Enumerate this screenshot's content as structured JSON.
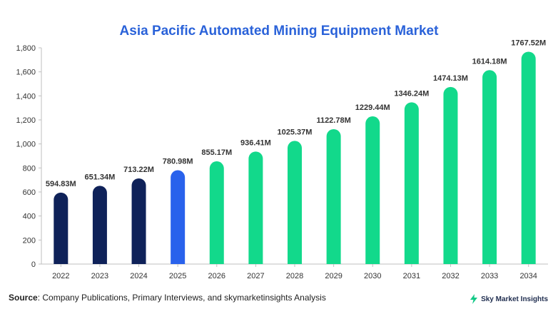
{
  "chart_data": {
    "type": "bar",
    "title": "Asia Pacific Automated Mining Equipment Market",
    "xlabel": "",
    "ylabel": "",
    "ylim": [
      0,
      1800
    ],
    "yticks": [
      0,
      200,
      400,
      600,
      800,
      1000,
      1200,
      1400,
      1600,
      1800
    ],
    "ytick_labels": [
      "0",
      "200",
      "400",
      "600",
      "800",
      "1,000",
      "1,200",
      "1,400",
      "1,600",
      "1,800"
    ],
    "categories": [
      "2022",
      "2023",
      "2024",
      "2025",
      "2026",
      "2027",
      "2028",
      "2029",
      "2030",
      "2031",
      "2032",
      "2033",
      "2034"
    ],
    "values": [
      594.83,
      651.34,
      713.22,
      780.98,
      855.17,
      936.41,
      1025.37,
      1122.78,
      1229.44,
      1346.24,
      1474.13,
      1614.18,
      1767.52
    ],
    "data_labels": [
      "594.83M",
      "651.34M",
      "713.22M",
      "780.98M",
      "855.17M",
      "936.41M",
      "1025.37M",
      "1122.78M",
      "1229.44M",
      "1346.24M",
      "1474.13M",
      "1614.18M",
      "1767.52M"
    ],
    "bar_colors": [
      "#0f2259",
      "#0f2259",
      "#0f2259",
      "#2962ec",
      "#12d98b",
      "#12d98b",
      "#12d98b",
      "#12d98b",
      "#12d98b",
      "#12d98b",
      "#12d98b",
      "#12d98b",
      "#12d98b"
    ],
    "grid": false,
    "legend": "none"
  },
  "footer": {
    "source_label": "Source",
    "source_text": ": Company Publications, Primary Interviews, and skymarketinsights Analysis",
    "brand": "Sky Market Insights",
    "brand_icon": "bolt-icon"
  },
  "colors": {
    "title": "#2a62d9",
    "axis": "#bfbfbf",
    "tick_text": "#333333",
    "label_text": "#333333"
  }
}
